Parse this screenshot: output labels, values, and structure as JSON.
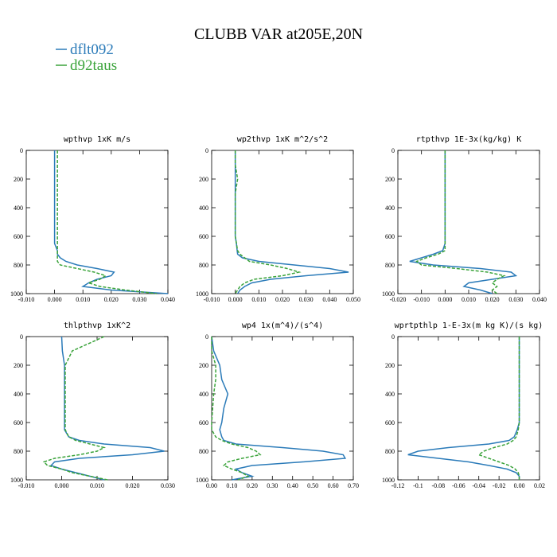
{
  "title": "CLUBB VAR at205E,20N",
  "chart_data": [
    {
      "type": "line",
      "title": "wpthvp  1xK m/s",
      "y": [
        0,
        100,
        200,
        300,
        400,
        500,
        600,
        650,
        700,
        725,
        750,
        775,
        800,
        825,
        850,
        875,
        900,
        925,
        950,
        975,
        1000
      ],
      "xlim": [
        -0.01,
        0.04
      ],
      "xticks": [
        {
          "value": -0.01,
          "label": "-0.010"
        },
        {
          "value": 0,
          "label": "0.000"
        },
        {
          "value": 0.01,
          "label": "0.010"
        },
        {
          "value": 0.02,
          "label": "0.020"
        },
        {
          "value": 0.03,
          "label": "0.030"
        },
        {
          "value": 0.04,
          "label": "0.040"
        }
      ],
      "ylim": [
        1000,
        0
      ],
      "yticks": [
        0,
        200,
        400,
        600,
        800,
        1000
      ],
      "series": [
        {
          "name": "dflt092",
          "color": "#2b7bb9",
          "linestyle": "solid",
          "values": [
            0,
            0,
            0,
            0,
            0,
            0,
            0,
            0,
            0.001,
            0.001,
            0.002,
            0.004,
            0.008,
            0.015,
            0.021,
            0.02,
            0.015,
            0.012,
            0.01,
            0.02,
            0.04
          ]
        },
        {
          "name": "d92taus",
          "color": "#3aa33a",
          "linestyle": "dashed",
          "values": [
            0.001,
            0.001,
            0.001,
            0.001,
            0.001,
            0.001,
            0.001,
            0.001,
            0.001,
            0.001,
            0.001,
            0.001,
            0.002,
            0.008,
            0.014,
            0.018,
            0.016,
            0.012,
            0.016,
            0.025,
            0.036
          ]
        }
      ]
    },
    {
      "type": "line",
      "title": "wp2thvp  1xK m^2/s^2",
      "y": [
        0,
        100,
        200,
        300,
        400,
        500,
        600,
        650,
        700,
        725,
        750,
        775,
        800,
        825,
        850,
        875,
        900,
        925,
        950,
        975,
        1000
      ],
      "xlim": [
        -0.01,
        0.05
      ],
      "xticks": [
        {
          "value": -0.01,
          "label": "-0.010"
        },
        {
          "value": 0,
          "label": "0.000"
        },
        {
          "value": 0.01,
          "label": "0.010"
        },
        {
          "value": 0.02,
          "label": "0.020"
        },
        {
          "value": 0.03,
          "label": "0.030"
        },
        {
          "value": 0.04,
          "label": "0.040"
        },
        {
          "value": 0.05,
          "label": "0.050"
        }
      ],
      "ylim": [
        1000,
        0
      ],
      "yticks": [
        0,
        200,
        400,
        600,
        800,
        1000
      ],
      "series": [
        {
          "name": "dflt092",
          "color": "#2b7bb9",
          "linestyle": "solid",
          "values": [
            0,
            0,
            0,
            0,
            0,
            0,
            0,
            0.0005,
            0.0008,
            0.001,
            0.003,
            0.01,
            0.025,
            0.04,
            0.048,
            0.03,
            0.015,
            0.007,
            0.004,
            0.002,
            0.001
          ]
        },
        {
          "name": "d92taus",
          "color": "#3aa33a",
          "linestyle": "dashed",
          "values": [
            0,
            0,
            0.001,
            0,
            0,
            0,
            0,
            0.0005,
            0.001,
            0.002,
            0.004,
            0.006,
            0.015,
            0.022,
            0.027,
            0.02,
            0.008,
            0.004,
            0.002,
            0.001,
            0
          ]
        }
      ]
    },
    {
      "type": "line",
      "title": "rtpthvp  1E-3x(kg/kg) K",
      "y": [
        0,
        100,
        200,
        300,
        400,
        500,
        600,
        650,
        700,
        725,
        750,
        775,
        800,
        825,
        850,
        875,
        900,
        925,
        950,
        975,
        1000
      ],
      "xlim": [
        -0.02,
        0.04
      ],
      "xticks": [
        {
          "value": -0.02,
          "label": "-0.020"
        },
        {
          "value": -0.01,
          "label": "-0.010"
        },
        {
          "value": 0,
          "label": "0.000"
        },
        {
          "value": 0.01,
          "label": "0.010"
        },
        {
          "value": 0.02,
          "label": "0.020"
        },
        {
          "value": 0.03,
          "label": "0.030"
        },
        {
          "value": 0.04,
          "label": "0.040"
        }
      ],
      "ylim": [
        1000,
        0
      ],
      "yticks": [
        0,
        200,
        400,
        600,
        800,
        1000
      ],
      "series": [
        {
          "name": "dflt092",
          "color": "#2b7bb9",
          "linestyle": "solid",
          "values": [
            0,
            0,
            0,
            0,
            0,
            0,
            0,
            0,
            -0.001,
            -0.005,
            -0.01,
            -0.015,
            -0.005,
            0.015,
            0.028,
            0.03,
            0.02,
            0.01,
            0.008,
            0.015,
            0.02
          ]
        },
        {
          "name": "d92taus",
          "color": "#3aa33a",
          "linestyle": "dashed",
          "values": [
            0,
            0,
            0,
            0,
            0,
            0,
            0,
            0,
            0,
            -0.003,
            -0.008,
            -0.012,
            -0.01,
            0.005,
            0.018,
            0.025,
            0.022,
            0.02,
            0.022,
            0.02,
            0.022
          ]
        }
      ]
    },
    {
      "type": "line",
      "title": "thlpthvp  1xK^2",
      "y": [
        0,
        100,
        200,
        300,
        400,
        500,
        600,
        650,
        700,
        725,
        750,
        775,
        800,
        825,
        850,
        875,
        900,
        925,
        950,
        975,
        1000
      ],
      "xlim": [
        -0.01,
        0.03
      ],
      "xticks": [
        {
          "value": -0.01,
          "label": "-0.010"
        },
        {
          "value": 0,
          "label": "0.000"
        },
        {
          "value": 0.01,
          "label": "0.010"
        },
        {
          "value": 0.02,
          "label": "0.020"
        },
        {
          "value": 0.03,
          "label": "0.030"
        }
      ],
      "ylim": [
        1000,
        0
      ],
      "yticks": [
        0,
        200,
        400,
        600,
        800,
        1000
      ],
      "series": [
        {
          "name": "dflt092",
          "color": "#2b7bb9",
          "linestyle": "solid",
          "values": [
            0,
            0.0002,
            0.0008,
            0.0008,
            0.0008,
            0.0008,
            0.0008,
            0.0008,
            0.002,
            0.005,
            0.012,
            0.025,
            0.029,
            0.02,
            0.005,
            -0.002,
            -0.003,
            0,
            0.004,
            0.008,
            0.012
          ]
        },
        {
          "name": "d92taus",
          "color": "#3aa33a",
          "linestyle": "dashed",
          "values": [
            0.012,
            0.003,
            0.001,
            0.001,
            0.001,
            0.001,
            0.001,
            0.001,
            0.002,
            0.004,
            0.008,
            0.012,
            0.01,
            0.005,
            -0.002,
            -0.005,
            -0.004,
            0,
            0.003,
            0.008,
            0.013
          ]
        }
      ]
    },
    {
      "type": "line",
      "title": "wp4  1x(m^4)/(s^4)",
      "y": [
        0,
        100,
        200,
        300,
        400,
        500,
        600,
        650,
        700,
        725,
        750,
        775,
        800,
        825,
        850,
        875,
        900,
        925,
        950,
        975,
        1000
      ],
      "xlim": [
        0,
        0.7
      ],
      "xticks": [
        {
          "value": 0,
          "label": "0.00"
        },
        {
          "value": 0.1,
          "label": "0.10"
        },
        {
          "value": 0.2,
          "label": "0.20"
        },
        {
          "value": 0.3,
          "label": "0.30"
        },
        {
          "value": 0.4,
          "label": "0.40"
        },
        {
          "value": 0.5,
          "label": "0.50"
        },
        {
          "value": 0.6,
          "label": "0.60"
        },
        {
          "value": 0.7,
          "label": "0.70"
        }
      ],
      "ylim": [
        1000,
        0
      ],
      "yticks": [
        0,
        200,
        400,
        600,
        800,
        1000
      ],
      "series": [
        {
          "name": "dflt092",
          "color": "#2b7bb9",
          "linestyle": "solid",
          "values": [
            0,
            0.01,
            0.04,
            0.05,
            0.08,
            0.06,
            0.05,
            0.04,
            0.05,
            0.06,
            0.12,
            0.35,
            0.55,
            0.65,
            0.66,
            0.45,
            0.2,
            0.12,
            0.15,
            0.2,
            0.1
          ]
        },
        {
          "name": "d92taus",
          "color": "#3aa33a",
          "linestyle": "dashed",
          "values": [
            0,
            0,
            0.02,
            0.02,
            0.01,
            0.005,
            0,
            0,
            0.02,
            0.05,
            0.1,
            0.18,
            0.22,
            0.24,
            0.15,
            0.08,
            0.06,
            0.1,
            0.15,
            0.18,
            0.13
          ]
        }
      ]
    },
    {
      "type": "line",
      "title": "wprtpthlp  1-E-3x(m kg K)/(s kg)",
      "y": [
        0,
        100,
        200,
        300,
        400,
        500,
        600,
        650,
        700,
        725,
        750,
        775,
        800,
        825,
        850,
        875,
        900,
        925,
        950,
        975,
        1000
      ],
      "xlim": [
        -0.12,
        0.02
      ],
      "xticks": [
        -0.12,
        -0.1,
        -0.08,
        -0.06,
        -0.04,
        -0.02,
        {
          "value": 0,
          "label": "0.00"
        },
        0.02
      ],
      "ylim": [
        1000,
        0
      ],
      "yticks": [
        0,
        200,
        400,
        600,
        800,
        1000
      ],
      "series": [
        {
          "name": "dflt092",
          "color": "#2b7bb9",
          "linestyle": "solid",
          "values": [
            0,
            0,
            0,
            0,
            0,
            0,
            0,
            -0.002,
            -0.005,
            -0.01,
            -0.03,
            -0.07,
            -0.1,
            -0.11,
            -0.08,
            -0.05,
            -0.03,
            -0.012,
            -0.003,
            0,
            0
          ]
        },
        {
          "name": "d92taus",
          "color": "#3aa33a",
          "linestyle": "dashed",
          "values": [
            0,
            0,
            0,
            0,
            0,
            0,
            0,
            -0.001,
            -0.003,
            -0.006,
            -0.012,
            -0.025,
            -0.035,
            -0.04,
            -0.03,
            -0.02,
            -0.01,
            -0.004,
            -0.001,
            0,
            0
          ]
        }
      ]
    }
  ]
}
